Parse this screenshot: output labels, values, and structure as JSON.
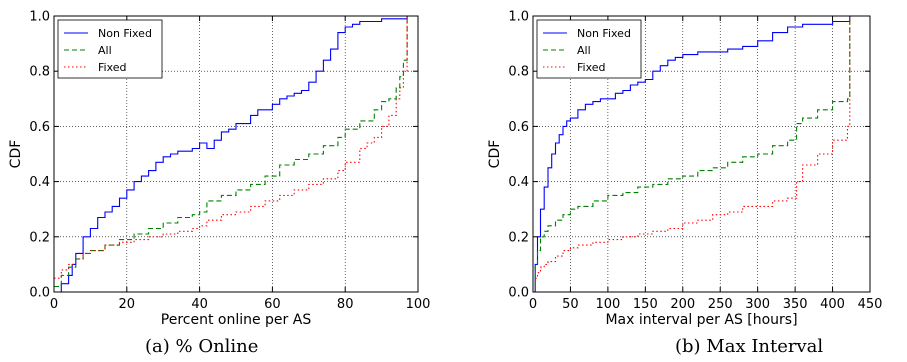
{
  "chart_data": [
    {
      "type": "line",
      "caption": "(a) % Online",
      "xlabel": "Percent online per AS",
      "ylabel": "CDF",
      "xlim": [
        0,
        100
      ],
      "ylim": [
        0,
        1.0
      ],
      "xticks": [
        "0",
        "20",
        "40",
        "60",
        "80",
        "100"
      ],
      "yticks": [
        "0.0",
        "0.2",
        "0.4",
        "0.6",
        "0.8",
        "1.0"
      ],
      "grid": true,
      "legend_position": "upper-left",
      "series": [
        {
          "name": "Non Fixed",
          "color": "#0000ff",
          "dash": "solid",
          "x": [
            0,
            2,
            4,
            5,
            6,
            8,
            10,
            12,
            14,
            16,
            18,
            20,
            22,
            24,
            26,
            28,
            30,
            32,
            34,
            36,
            38,
            40,
            42,
            44,
            46,
            48,
            50,
            52,
            54,
            56,
            58,
            60,
            62,
            64,
            66,
            68,
            70,
            72,
            74,
            76,
            78,
            80,
            82,
            84,
            86,
            88,
            90,
            92,
            94,
            96,
            97
          ],
          "y": [
            0.0,
            0.03,
            0.06,
            0.1,
            0.14,
            0.2,
            0.23,
            0.27,
            0.29,
            0.31,
            0.34,
            0.37,
            0.4,
            0.42,
            0.44,
            0.47,
            0.49,
            0.5,
            0.51,
            0.51,
            0.52,
            0.54,
            0.52,
            0.55,
            0.58,
            0.59,
            0.61,
            0.61,
            0.64,
            0.66,
            0.66,
            0.68,
            0.7,
            0.71,
            0.72,
            0.73,
            0.76,
            0.8,
            0.84,
            0.88,
            0.94,
            0.96,
            0.97,
            0.98,
            0.98,
            0.98,
            0.99,
            0.99,
            0.99,
            0.99,
            1.0
          ]
        },
        {
          "name": "All",
          "color": "#008000",
          "dash": "dashed",
          "x": [
            0,
            2,
            4,
            6,
            8,
            10,
            14,
            18,
            22,
            26,
            30,
            34,
            38,
            40,
            42,
            46,
            50,
            54,
            58,
            62,
            66,
            70,
            74,
            78,
            80,
            84,
            88,
            90,
            92,
            94,
            95,
            96,
            97
          ],
          "y": [
            0.02,
            0.06,
            0.09,
            0.12,
            0.14,
            0.15,
            0.17,
            0.19,
            0.21,
            0.23,
            0.25,
            0.27,
            0.28,
            0.29,
            0.33,
            0.35,
            0.37,
            0.39,
            0.42,
            0.46,
            0.48,
            0.5,
            0.53,
            0.56,
            0.59,
            0.62,
            0.66,
            0.69,
            0.7,
            0.74,
            0.78,
            0.84,
            1.0
          ]
        },
        {
          "name": "Fixed",
          "color": "#ff0000",
          "dash": "dotted",
          "x": [
            0,
            2,
            4,
            6,
            8,
            10,
            14,
            18,
            22,
            26,
            30,
            34,
            38,
            40,
            42,
            46,
            50,
            54,
            58,
            62,
            66,
            70,
            74,
            78,
            80,
            84,
            86,
            88,
            90,
            92,
            94,
            95,
            96,
            97
          ],
          "y": [
            0.05,
            0.08,
            0.1,
            0.12,
            0.14,
            0.15,
            0.17,
            0.18,
            0.19,
            0.2,
            0.21,
            0.22,
            0.23,
            0.24,
            0.26,
            0.28,
            0.29,
            0.31,
            0.33,
            0.35,
            0.37,
            0.39,
            0.41,
            0.44,
            0.47,
            0.52,
            0.54,
            0.56,
            0.6,
            0.64,
            0.7,
            0.74,
            0.8,
            1.0
          ]
        }
      ]
    },
    {
      "type": "line",
      "caption": "(b) Max Interval",
      "xlabel": "Max interval per AS [hours]",
      "ylabel": "CDF",
      "xlim": [
        0,
        450
      ],
      "ylim": [
        0,
        1.0
      ],
      "xticks": [
        "0",
        "50",
        "100",
        "150",
        "200",
        "250",
        "300",
        "350",
        "400",
        "450"
      ],
      "yticks": [
        "0.0",
        "0.2",
        "0.4",
        "0.6",
        "0.8",
        "1.0"
      ],
      "grid": true,
      "legend_position": "upper-left",
      "series": [
        {
          "name": "Non Fixed",
          "color": "#0000ff",
          "dash": "solid",
          "x": [
            0,
            3,
            6,
            10,
            15,
            20,
            25,
            30,
            35,
            40,
            45,
            50,
            60,
            70,
            80,
            90,
            100,
            110,
            120,
            130,
            140,
            150,
            160,
            170,
            180,
            190,
            200,
            220,
            240,
            260,
            280,
            300,
            320,
            340,
            360,
            380,
            400,
            420,
            423
          ],
          "y": [
            0.0,
            0.1,
            0.2,
            0.3,
            0.38,
            0.45,
            0.5,
            0.54,
            0.57,
            0.6,
            0.62,
            0.63,
            0.66,
            0.68,
            0.69,
            0.7,
            0.7,
            0.72,
            0.73,
            0.75,
            0.76,
            0.77,
            0.8,
            0.82,
            0.84,
            0.85,
            0.86,
            0.87,
            0.87,
            0.88,
            0.89,
            0.91,
            0.94,
            0.96,
            0.97,
            0.97,
            0.98,
            0.98,
            1.0
          ]
        },
        {
          "name": "All",
          "color": "#008000",
          "dash": "dashed",
          "x": [
            0,
            3,
            6,
            10,
            15,
            20,
            30,
            40,
            50,
            60,
            80,
            100,
            120,
            140,
            160,
            180,
            200,
            220,
            240,
            260,
            280,
            300,
            320,
            340,
            350,
            352,
            360,
            380,
            400,
            420,
            423
          ],
          "y": [
            0.0,
            0.1,
            0.15,
            0.2,
            0.22,
            0.24,
            0.26,
            0.28,
            0.3,
            0.31,
            0.33,
            0.35,
            0.36,
            0.38,
            0.39,
            0.41,
            0.42,
            0.44,
            0.45,
            0.47,
            0.49,
            0.5,
            0.53,
            0.55,
            0.55,
            0.61,
            0.63,
            0.66,
            0.69,
            0.7,
            1.0
          ]
        },
        {
          "name": "Fixed",
          "color": "#ff0000",
          "dash": "dotted",
          "x": [
            0,
            3,
            6,
            10,
            15,
            20,
            30,
            40,
            50,
            60,
            80,
            100,
            120,
            140,
            160,
            180,
            200,
            220,
            240,
            260,
            280,
            300,
            320,
            340,
            350,
            352,
            360,
            380,
            400,
            420,
            423
          ],
          "y": [
            0.0,
            0.05,
            0.07,
            0.09,
            0.1,
            0.11,
            0.13,
            0.15,
            0.16,
            0.17,
            0.18,
            0.19,
            0.2,
            0.21,
            0.22,
            0.23,
            0.25,
            0.26,
            0.28,
            0.29,
            0.31,
            0.31,
            0.33,
            0.34,
            0.34,
            0.4,
            0.46,
            0.5,
            0.55,
            0.6,
            1.0
          ]
        }
      ]
    }
  ]
}
